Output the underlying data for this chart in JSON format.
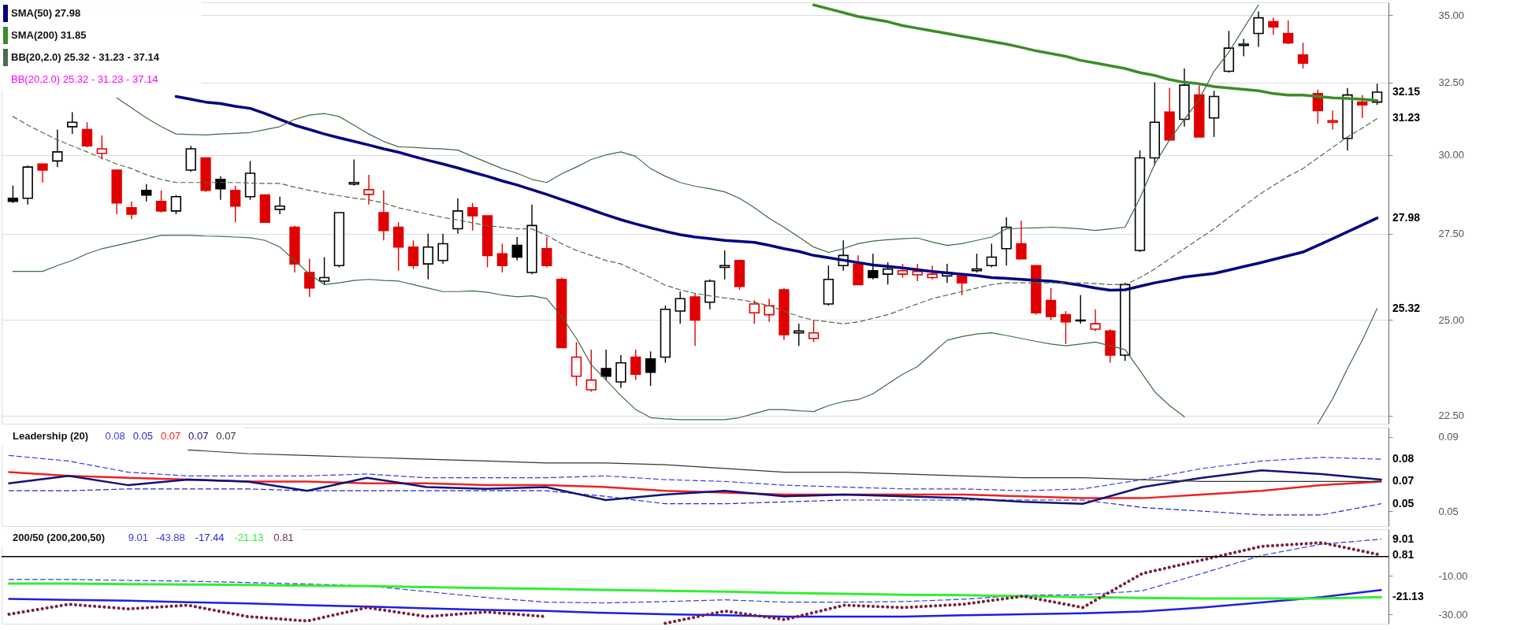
{
  "chart_data": [
    {
      "type": "candlestick",
      "legend": "top left",
      "log": true,
      "grid": "y",
      "categories": [
        null,
        null,
        null,
        null,
        null,
        null,
        null,
        null,
        null,
        null,
        null,
        null,
        null,
        null,
        null,
        null,
        null,
        null,
        null,
        null,
        null,
        null,
        null,
        null,
        null,
        null,
        null,
        null,
        null,
        null,
        null,
        null,
        null,
        null,
        null,
        null,
        null,
        null,
        null,
        null,
        null,
        null,
        null,
        null,
        null,
        null,
        null,
        null,
        null,
        null,
        null,
        null,
        null,
        null,
        null,
        null,
        null,
        null,
        null,
        null,
        null,
        null,
        null,
        null,
        null,
        null,
        null,
        null,
        null,
        null,
        null,
        null,
        null,
        null,
        null,
        null,
        null,
        null,
        null,
        null,
        null,
        null,
        null,
        null,
        null,
        null,
        null,
        null,
        null,
        null,
        null,
        null,
        null
      ],
      "ohlc": [
        [
          28.6,
          29.0,
          28.45,
          28.5
        ],
        [
          28.6,
          29.65,
          28.4,
          29.6
        ],
        [
          29.7,
          29.7,
          29.1,
          29.5
        ],
        [
          29.8,
          30.85,
          29.6,
          30.1
        ],
        [
          30.95,
          31.45,
          30.7,
          31.1
        ],
        [
          30.85,
          31.1,
          30.25,
          30.3
        ],
        [
          30.05,
          30.65,
          29.85,
          30.2
        ],
        [
          29.5,
          29.5,
          28.1,
          28.45
        ],
        [
          28.3,
          28.5,
          27.95,
          28.1
        ],
        [
          28.85,
          29.05,
          28.5,
          28.7
        ],
        [
          28.5,
          28.85,
          28.15,
          28.2
        ],
        [
          28.2,
          28.7,
          28.1,
          28.65
        ],
        [
          29.5,
          30.3,
          29.45,
          30.2
        ],
        [
          29.9,
          29.9,
          28.8,
          28.85
        ],
        [
          29.2,
          29.3,
          28.55,
          28.9
        ],
        [
          28.85,
          29.0,
          27.85,
          28.35
        ],
        [
          28.65,
          29.8,
          28.55,
          29.4
        ],
        [
          28.7,
          28.7,
          27.85,
          27.85
        ],
        [
          28.25,
          28.65,
          28.1,
          28.35
        ],
        [
          27.7,
          27.75,
          26.35,
          26.6
        ],
        [
          26.35,
          26.75,
          25.65,
          25.9
        ],
        [
          26.1,
          26.8,
          26.0,
          26.2
        ],
        [
          26.55,
          28.15,
          26.5,
          28.15
        ],
        [
          29.05,
          29.85,
          29.0,
          29.1
        ],
        [
          28.72,
          29.35,
          28.4,
          28.87
        ],
        [
          28.15,
          28.85,
          27.3,
          27.6
        ],
        [
          27.7,
          27.85,
          26.4,
          27.1
        ],
        [
          27.1,
          27.3,
          26.45,
          26.55
        ],
        [
          26.6,
          27.5,
          26.15,
          27.1
        ],
        [
          26.7,
          27.5,
          26.6,
          27.2
        ],
        [
          27.65,
          28.6,
          27.5,
          28.2
        ],
        [
          28.3,
          28.45,
          27.6,
          28.05
        ],
        [
          28.05,
          28.05,
          26.5,
          26.85
        ],
        [
          26.9,
          27.2,
          26.35,
          26.55
        ],
        [
          27.15,
          27.4,
          26.7,
          26.8
        ],
        [
          26.35,
          28.4,
          26.3,
          27.75
        ],
        [
          27.05,
          27.4,
          26.5,
          26.55
        ],
        [
          26.15,
          26.2,
          24.25,
          24.25
        ],
        [
          23.5,
          24.4,
          23.25,
          24.0
        ],
        [
          23.15,
          24.2,
          23.1,
          23.4
        ],
        [
          23.7,
          24.2,
          23.4,
          23.5
        ],
        [
          23.35,
          24.05,
          23.2,
          23.85
        ],
        [
          24.0,
          24.2,
          23.4,
          23.55
        ],
        [
          23.95,
          24.15,
          23.25,
          23.6
        ],
        [
          24.0,
          25.4,
          23.85,
          25.3
        ],
        [
          25.25,
          25.8,
          24.9,
          25.6
        ],
        [
          25.65,
          25.75,
          24.3,
          25.0
        ],
        [
          25.5,
          26.15,
          25.3,
          26.1
        ],
        [
          26.5,
          27.0,
          26.15,
          26.55
        ],
        [
          26.7,
          26.7,
          25.85,
          25.95
        ],
        [
          25.2,
          25.55,
          24.9,
          25.45
        ],
        [
          25.15,
          25.6,
          24.95,
          25.4
        ],
        [
          25.85,
          25.9,
          24.45,
          24.6
        ],
        [
          24.65,
          24.9,
          24.3,
          24.7
        ],
        [
          24.5,
          25.0,
          24.4,
          24.65
        ],
        [
          25.45,
          26.55,
          25.4,
          26.15
        ],
        [
          26.55,
          27.3,
          26.4,
          26.85
        ],
        [
          26.6,
          26.85,
          26.0,
          26.0
        ],
        [
          26.4,
          26.9,
          26.15,
          26.2
        ],
        [
          26.3,
          26.65,
          26.0,
          26.45
        ],
        [
          26.3,
          26.6,
          26.2,
          26.4
        ],
        [
          26.28,
          26.6,
          26.1,
          26.38
        ],
        [
          26.2,
          26.55,
          26.15,
          26.3
        ],
        [
          26.25,
          26.6,
          26.05,
          26.35
        ],
        [
          26.25,
          26.25,
          25.7,
          26.05
        ],
        [
          26.4,
          26.9,
          26.35,
          26.45
        ],
        [
          26.55,
          27.2,
          26.5,
          26.8
        ],
        [
          27.05,
          28.0,
          26.55,
          27.7
        ],
        [
          27.2,
          27.9,
          26.75,
          26.75
        ],
        [
          26.55,
          26.55,
          25.15,
          25.2
        ],
        [
          25.55,
          25.9,
          25.0,
          25.1
        ],
        [
          25.15,
          25.25,
          24.35,
          24.95
        ],
        [
          24.98,
          25.7,
          24.9,
          25.0
        ],
        [
          24.75,
          25.3,
          24.7,
          24.9
        ],
        [
          24.7,
          24.75,
          23.85,
          24.05
        ],
        [
          24.05,
          26.05,
          23.9,
          26.0
        ],
        [
          27.0,
          30.15,
          26.95,
          29.9
        ],
        [
          29.9,
          32.5,
          29.65,
          31.1
        ],
        [
          31.45,
          32.3,
          30.5,
          30.5
        ],
        [
          31.2,
          33.0,
          30.95,
          32.4
        ],
        [
          32.05,
          32.4,
          30.6,
          30.6
        ],
        [
          31.25,
          32.2,
          30.6,
          32.0
        ],
        [
          32.9,
          34.4,
          32.85,
          33.75
        ],
        [
          33.85,
          34.1,
          33.45,
          33.9
        ],
        [
          34.3,
          35.15,
          33.8,
          34.9
        ],
        [
          34.75,
          34.9,
          34.25,
          34.55
        ],
        [
          34.3,
          34.8,
          33.9,
          33.95
        ],
        [
          33.5,
          33.95,
          33.0,
          33.2
        ],
        [
          32.1,
          32.25,
          31.05,
          31.5
        ],
        [
          31.1,
          31.5,
          30.85,
          31.15
        ],
        [
          30.55,
          32.3,
          30.15,
          32.05
        ],
        [
          31.8,
          32.05,
          31.25,
          31.7
        ],
        [
          31.8,
          32.45,
          31.7,
          32.15
        ]
      ],
      "colors": [
        "#000000",
        "#000000",
        "#e00000",
        "#000000",
        "#000000",
        "#e00000",
        "#e00000",
        "#e00000",
        "#e00000",
        "#000000",
        "#e00000",
        "#000000",
        "#000000",
        "#e00000",
        "#000000",
        "#e00000",
        "#000000",
        "#e00000",
        "#000000",
        "#e00000",
        "#e00000",
        "#000000",
        "#000000",
        "#000000",
        "#e00000",
        "#e00000",
        "#e00000",
        "#e00000",
        "#000000",
        "#000000",
        "#000000",
        "#e00000",
        "#e00000",
        "#e00000",
        "#000000",
        "#000000",
        "#e00000",
        "#e00000",
        "#e00000",
        "#e00000",
        "#000000",
        "#000000",
        "#e00000",
        "#000000",
        "#000000",
        "#000000",
        "#e00000",
        "#000000",
        "#000000",
        "#e00000",
        "#e00000",
        "#e00000",
        "#e00000",
        "#000000",
        "#e00000",
        "#000000",
        "#000000",
        "#e00000",
        "#000000",
        "#000000",
        "#e00000",
        "#e00000",
        "#e00000",
        "#000000",
        "#e00000",
        "#000000",
        "#000000",
        "#000000",
        "#e00000",
        "#e00000",
        "#e00000",
        "#e00000",
        "#000000",
        "#e00000",
        "#e00000",
        "#000000",
        "#000000",
        "#000000",
        "#e00000",
        "#000000",
        "#e00000",
        "#000000",
        "#000000",
        "#000000",
        "#000000",
        "#e00000",
        "#e00000",
        "#e00000",
        "#e00000",
        "#e00000",
        "#000000",
        "#e00000",
        "#000000"
      ],
      "series": [
        {
          "name": "SMA(50) 27.98",
          "type": "line",
          "color": "#000080",
          "value_labels": [
            null,
            null,
            null,
            null,
            null,
            null,
            null,
            null,
            null,
            null,
            null,
            null,
            null,
            null,
            null,
            null,
            null,
            null,
            null,
            null,
            null,
            null,
            null,
            null,
            null,
            null,
            null,
            null,
            null,
            null,
            null,
            null,
            null,
            null,
            null,
            null,
            null,
            null,
            null,
            null,
            null,
            null,
            null,
            null,
            null,
            null,
            null,
            null,
            null,
            null,
            null,
            null,
            null,
            null,
            null,
            null,
            null,
            null,
            null,
            null,
            null,
            null,
            null,
            null,
            null,
            null,
            null,
            null,
            null,
            null,
            null,
            null,
            null,
            null,
            null,
            null,
            null,
            null,
            null,
            null,
            null,
            null,
            null,
            null,
            null,
            null,
            null,
            null,
            null,
            null,
            null,
            null,
            "27.98"
          ],
          "values": [
            null,
            null,
            null,
            null,
            null,
            null,
            null,
            null,
            null,
            null,
            null,
            32.0,
            31.9,
            31.8,
            31.75,
            31.65,
            31.58,
            31.4,
            31.2,
            31.0,
            30.85,
            30.7,
            30.57,
            30.45,
            30.33,
            30.2,
            30.09,
            29.95,
            29.82,
            29.7,
            29.57,
            29.43,
            29.3,
            29.15,
            29.02,
            28.87,
            28.72,
            28.56,
            28.4,
            28.24,
            28.08,
            27.93,
            27.8,
            27.68,
            27.57,
            27.47,
            27.4,
            27.35,
            27.3,
            27.27,
            27.24,
            27.15,
            27.05,
            26.97,
            26.85,
            26.78,
            26.71,
            26.64,
            26.57,
            26.53,
            26.48,
            26.43,
            26.38,
            26.34,
            26.3,
            26.26,
            26.2,
            26.18,
            26.15,
            26.12,
            26.1,
            26.05,
            25.98,
            25.9,
            25.84,
            25.85,
            25.95,
            26.05,
            26.13,
            26.22,
            26.27,
            26.32,
            26.42,
            26.52,
            26.62,
            26.73,
            26.84,
            26.95,
            27.15,
            27.35,
            27.56,
            27.77,
            27.98
          ]
        },
        {
          "name": "SMA(200) 31.85",
          "type": "line",
          "color": "#3c8c28",
          "values": [
            null,
            null,
            null,
            null,
            null,
            null,
            null,
            null,
            null,
            null,
            null,
            null,
            null,
            null,
            null,
            null,
            null,
            null,
            null,
            null,
            null,
            null,
            null,
            null,
            null,
            null,
            null,
            null,
            null,
            null,
            null,
            null,
            null,
            null,
            null,
            null,
            null,
            null,
            null,
            null,
            null,
            null,
            null,
            null,
            null,
            null,
            null,
            null,
            null,
            null,
            null,
            null,
            null,
            null,
            35.4,
            35.25,
            35.1,
            34.95,
            34.85,
            34.75,
            34.6,
            34.5,
            34.4,
            34.3,
            34.2,
            34.1,
            34.0,
            33.9,
            33.78,
            33.65,
            33.55,
            33.45,
            33.3,
            33.2,
            33.1,
            33.0,
            32.85,
            32.75,
            32.6,
            32.5,
            32.45,
            32.35,
            32.3,
            32.25,
            32.2,
            32.1,
            32.05,
            32.05,
            32.0,
            31.95,
            31.93,
            31.9,
            31.85
          ]
        },
        {
          "name": "BB(20,2.0) 25.32 - 31.23 - 37.14",
          "type": "line",
          "color": "#4d6b4d",
          "line_style": "dashed",
          "value_labels": [
            null,
            null,
            null,
            null,
            null,
            null,
            null,
            null,
            null,
            null,
            null,
            null,
            null,
            null,
            null,
            null,
            null,
            null,
            null,
            null,
            null,
            null,
            null,
            null,
            null,
            null,
            null,
            null,
            null,
            null,
            null,
            null,
            null,
            null,
            null,
            null,
            null,
            null,
            null,
            null,
            null,
            null,
            null,
            null,
            null,
            null,
            null,
            null,
            null,
            null,
            null,
            null,
            null,
            null,
            null,
            null,
            null,
            null,
            null,
            null,
            null,
            null,
            null,
            null,
            null,
            null,
            null,
            null,
            null,
            null,
            null,
            null,
            null,
            null,
            null,
            null,
            null,
            null,
            null,
            null,
            null,
            null,
            null,
            null,
            null,
            null,
            null,
            null,
            null,
            null,
            null,
            null,
            "31.23"
          ],
          "values": [
            31.3,
            31.0,
            30.75,
            30.5,
            30.3,
            30.1,
            29.9,
            29.7,
            29.55,
            29.35,
            29.2,
            29.1,
            29.1,
            29.1,
            29.1,
            29.1,
            29.08,
            29.07,
            29.07,
            28.95,
            28.85,
            28.76,
            28.68,
            28.6,
            28.55,
            28.45,
            28.3,
            28.2,
            28.1,
            28.0,
            27.92,
            27.83,
            27.75,
            27.7,
            27.65,
            27.65,
            27.45,
            27.2,
            27.0,
            26.85,
            26.7,
            26.6,
            26.4,
            26.2,
            25.98,
            25.85,
            25.75,
            25.68,
            25.62,
            25.57,
            25.5,
            25.4,
            25.25,
            25.1,
            25.0,
            24.95,
            24.9,
            24.95,
            25.05,
            25.15,
            25.3,
            25.45,
            25.6,
            25.7,
            25.8,
            25.9,
            26.0,
            26.05,
            26.05,
            26.05,
            26.05,
            26.05,
            26.05,
            26.03,
            26.0,
            26.0,
            26.2,
            26.45,
            26.75,
            27.05,
            27.35,
            27.65,
            28.0,
            28.35,
            28.7,
            29.0,
            29.3,
            29.55,
            29.9,
            30.25,
            30.6,
            30.9,
            31.23
          ]
        },
        {
          "type": "line",
          "color": "#3f6b3f",
          "values": [
            null,
            null,
            null,
            null,
            null,
            null,
            null,
            31.95,
            31.6,
            31.25,
            30.95,
            30.7,
            30.68,
            30.67,
            30.7,
            30.72,
            30.75,
            30.85,
            30.95,
            31.2,
            31.35,
            31.4,
            31.3,
            31.0,
            30.7,
            30.45,
            30.27,
            30.25,
            30.22,
            30.2,
            30.16,
            29.95,
            29.75,
            29.55,
            29.4,
            29.2,
            29.1,
            29.38,
            29.6,
            29.85,
            30.0,
            30.1,
            29.95,
            29.55,
            29.3,
            29.1,
            28.98,
            28.9,
            28.8,
            28.6,
            28.3,
            27.97,
            27.7,
            27.4,
            27.1,
            26.94,
            27.05,
            27.2,
            27.28,
            27.32,
            27.35,
            27.37,
            27.25,
            27.15,
            27.2,
            27.3,
            27.4,
            27.65,
            27.67,
            27.68,
            27.7,
            27.68,
            27.65,
            27.6,
            27.65,
            27.7,
            28.6,
            29.7,
            30.5,
            31.2,
            31.9,
            32.9,
            33.6,
            34.5,
            35.4,
            null,
            null,
            null,
            null,
            null,
            null,
            null,
            null
          ]
        },
        {
          "type": "line",
          "color": "#3f6b3f",
          "value_labels": [
            null,
            null,
            null,
            null,
            null,
            null,
            null,
            null,
            null,
            null,
            null,
            null,
            null,
            null,
            null,
            null,
            null,
            null,
            null,
            null,
            null,
            null,
            null,
            null,
            null,
            null,
            null,
            null,
            null,
            null,
            null,
            null,
            null,
            null,
            null,
            null,
            null,
            null,
            null,
            null,
            null,
            null,
            null,
            null,
            null,
            null,
            null,
            null,
            null,
            null,
            null,
            null,
            null,
            null,
            null,
            null,
            null,
            null,
            null,
            null,
            null,
            null,
            null,
            null,
            null,
            null,
            null,
            null,
            null,
            null,
            null,
            null,
            null,
            null,
            null,
            null,
            null,
            null,
            null,
            null,
            null,
            null,
            null,
            null,
            null,
            null,
            null,
            null,
            null,
            null,
            null,
            null,
            "25.32"
          ],
          "values": [
            26.38,
            26.38,
            26.38,
            26.55,
            26.7,
            26.9,
            27.05,
            27.15,
            27.25,
            27.35,
            27.45,
            27.45,
            27.45,
            27.43,
            27.42,
            27.4,
            27.38,
            27.3,
            27.1,
            26.7,
            26.3,
            26.0,
            26.05,
            26.12,
            26.15,
            26.12,
            26.1,
            26.0,
            25.9,
            25.8,
            25.8,
            25.82,
            25.78,
            25.7,
            25.65,
            25.68,
            25.6,
            25.1,
            24.5,
            23.8,
            23.4,
            23.0,
            22.65,
            22.45,
            22.42,
            22.4,
            22.4,
            22.4,
            22.4,
            22.45,
            22.55,
            22.65,
            22.65,
            22.62,
            22.6,
            22.75,
            22.85,
            22.9,
            23.05,
            23.3,
            23.55,
            23.75,
            24.1,
            24.45,
            24.55,
            24.62,
            24.65,
            24.58,
            24.5,
            24.42,
            24.35,
            24.3,
            24.35,
            24.4,
            24.3,
            24.2,
            23.65,
            23.1,
            22.75,
            22.47,
            null,
            null,
            null,
            null,
            null,
            null,
            null,
            null,
            22.3,
            22.92,
            23.7,
            24.45,
            25.32
          ]
        }
      ],
      "annotations": [
        "BB(20,2.0) 25.32 - 31.23 - 37.14"
      ],
      "value_labels": [
        null,
        null,
        null,
        null,
        null,
        null,
        null,
        null,
        null,
        null,
        null,
        null,
        null,
        null,
        null,
        null,
        null,
        null,
        null,
        null,
        null,
        null,
        null,
        null,
        null,
        null,
        null,
        null,
        null,
        null,
        null,
        null,
        null,
        null,
        null,
        null,
        null,
        null,
        null,
        null,
        null,
        null,
        null,
        null,
        null,
        null,
        null,
        null,
        null,
        null,
        null,
        null,
        null,
        null,
        null,
        null,
        null,
        null,
        null,
        null,
        null,
        null,
        null,
        null,
        null,
        null,
        null,
        null,
        null,
        null,
        null,
        null,
        null,
        null,
        null,
        null,
        null,
        null,
        null,
        null,
        null,
        null,
        null,
        null,
        null,
        null,
        null,
        null,
        null,
        null,
        null,
        null,
        "32.15"
      ],
      "ylim": [
        22.3,
        35.5
      ],
      "yticks": [
        {
          "value": 22.5,
          "label": "22.50"
        },
        {
          "value": 25,
          "label": "25.00"
        },
        {
          "value": 27.5,
          "label": "27.50"
        },
        {
          "value": 30,
          "label": "30.00"
        },
        {
          "value": 32.5,
          "label": "32.50"
        },
        {
          "value": 35,
          "label": "35.00"
        }
      ]
    },
    {
      "type": "line",
      "title": "Leadership (20)",
      "legend": "top left",
      "categories": [
        null,
        null,
        null,
        null,
        null,
        null,
        null,
        null,
        null,
        null,
        null,
        null,
        null,
        null,
        null,
        null,
        null,
        null,
        null,
        null,
        null,
        null,
        null,
        null
      ],
      "series": [
        {
          "name": "0.08",
          "color": "#3a3ae0",
          "line_style": "dashed",
          "value_labels": [
            null,
            null,
            null,
            null,
            null,
            null,
            null,
            null,
            null,
            null,
            null,
            null,
            null,
            null,
            null,
            null,
            null,
            null,
            null,
            null,
            null,
            null,
            null,
            "0.08"
          ],
          "values": [
            0.08,
            0.077,
            0.071,
            0.069,
            0.069,
            0.069,
            0.07,
            0.068,
            0.068,
            0.068,
            0.069,
            0.067,
            0.066,
            0.064,
            0.063,
            0.062,
            0.062,
            0.061,
            0.062,
            0.067,
            0.073,
            0.077,
            0.079,
            0.078
          ]
        },
        {
          "name": "0.05",
          "color": "#2424c8",
          "line_style": "dashed",
          "value_labels": [
            null,
            null,
            null,
            null,
            null,
            null,
            null,
            null,
            null,
            null,
            null,
            null,
            null,
            null,
            null,
            null,
            null,
            null,
            null,
            null,
            null,
            null,
            null,
            "0.05"
          ],
          "values": [
            0.061,
            0.061,
            0.062,
            0.062,
            0.062,
            0.061,
            0.061,
            0.061,
            0.061,
            0.061,
            0.058,
            0.054,
            0.054,
            0.055,
            0.056,
            0.056,
            0.056,
            0.056,
            0.056,
            0.052,
            0.05,
            0.048,
            0.048,
            0.054
          ]
        },
        {
          "name": "0.07",
          "color": "#ee2222",
          "values": [
            0.071,
            0.069,
            0.068,
            0.067,
            0.066,
            0.066,
            0.065,
            0.065,
            0.064,
            0.064,
            0.063,
            0.061,
            0.06,
            0.059,
            0.059,
            0.059,
            0.059,
            0.058,
            0.057,
            0.057,
            0.059,
            0.061,
            0.064,
            0.066
          ]
        },
        {
          "name": "0.07",
          "color": "#12127a",
          "values": [
            0.065,
            0.069,
            0.064,
            0.067,
            0.066,
            0.061,
            0.068,
            0.063,
            0.062,
            0.063,
            0.056,
            0.059,
            0.061,
            0.058,
            0.059,
            0.058,
            0.057,
            0.055,
            0.054,
            0.063,
            0.068,
            0.072,
            0.07,
            0.067
          ]
        },
        {
          "name": "0.07",
          "color": "#333333",
          "value_labels": [
            null,
            null,
            null,
            null,
            null,
            null,
            null,
            null,
            null,
            null,
            null,
            null,
            null,
            null,
            null,
            null,
            null,
            null,
            null,
            null,
            null,
            null,
            null,
            "0.07"
          ],
          "values": [
            null,
            null,
            null,
            0.083,
            0.081,
            0.08,
            0.079,
            0.078,
            0.077,
            0.076,
            0.076,
            0.075,
            0.073,
            0.071,
            0.071,
            0.07,
            0.069,
            0.068,
            0.068,
            0.067,
            0.066,
            0.066,
            0.066,
            0.066
          ]
        }
      ],
      "ylim": [
        0.042,
        0.095
      ],
      "yticks": [
        {
          "value": 0.09,
          "label": "0.09"
        },
        {
          "value": 0.05,
          "label": "0.05"
        }
      ]
    },
    {
      "type": "line",
      "title": "200/50 (200,200,50)",
      "legend": "top left",
      "categories": [
        null,
        null,
        null,
        null,
        null,
        null,
        null,
        null,
        null,
        null,
        null,
        null,
        null,
        null,
        null,
        null,
        null,
        null,
        null,
        null,
        null,
        null,
        null,
        null
      ],
      "series": [
        {
          "name": "9.01",
          "color": "#3a3ae0",
          "line_style": "dashed",
          "value_labels": [
            null,
            null,
            null,
            null,
            null,
            null,
            null,
            null,
            null,
            null,
            null,
            null,
            null,
            null,
            null,
            null,
            null,
            null,
            null,
            null,
            null,
            null,
            null,
            "9.01"
          ],
          "values": [
            -11.9,
            -11.9,
            -12.4,
            -12.8,
            -13.5,
            -14.3,
            -15.2,
            -18.2,
            -21.3,
            -23.7,
            -24.1,
            -23.4,
            -22.5,
            -23.7,
            -23.7,
            -23.4,
            -22.2,
            -20.1,
            -19.9,
            -17.8,
            -8.8,
            0.6,
            6.4,
            9.01
          ]
        },
        {
          "name": "-43.88",
          "color": "#3a3ae0",
          "values": [
            null,
            null,
            null,
            null,
            null,
            null,
            null,
            null,
            null,
            null,
            null,
            null,
            null,
            null,
            null,
            null,
            null,
            null,
            null,
            null,
            null,
            null,
            null,
            null
          ]
        },
        {
          "name": "-17.44",
          "color": "#1f1fe0",
          "values": [
            -22.0,
            -22.5,
            -22.9,
            -23.7,
            -24.4,
            -25.3,
            -26.0,
            -26.9,
            -27.7,
            -28.3,
            -29.3,
            -30.0,
            -30.5,
            -31.2,
            -31.2,
            -31.2,
            -30.5,
            -30.0,
            -29.5,
            -28.6,
            -26.5,
            -23.9,
            -21.1,
            -17.4
          ]
        },
        {
          "name": "-21.13",
          "color": "#33ee33",
          "value_labels": [
            null,
            null,
            null,
            null,
            null,
            null,
            null,
            null,
            null,
            null,
            null,
            null,
            null,
            null,
            null,
            null,
            null,
            null,
            null,
            null,
            null,
            null,
            null,
            "-21.13"
          ],
          "values": [
            -14.0,
            -14.0,
            -14.3,
            -14.5,
            -14.7,
            -15.2,
            -15.4,
            -15.9,
            -16.4,
            -16.8,
            -17.3,
            -17.8,
            -18.2,
            -18.9,
            -19.4,
            -19.9,
            -20.1,
            -20.6,
            -21.1,
            -21.5,
            -21.8,
            -21.8,
            -21.8,
            -21.13
          ]
        },
        {
          "name": "0.81",
          "color": "#7a1f3d",
          "line_style": "dotted",
          "value_labels": [
            null,
            null,
            null,
            null,
            null,
            null,
            null,
            null,
            null,
            null,
            null,
            null,
            null,
            null,
            null,
            null,
            null,
            null,
            null,
            null,
            null,
            null,
            null,
            "0.81"
          ],
          "values": [
            -30.0,
            -24.8,
            -27.2,
            -25.3,
            -31.2,
            -33.5,
            -26.5,
            -31.2,
            -28.8,
            -31.2,
            null,
            -34.7,
            -28.3,
            -32.8,
            -25.3,
            -26.5,
            -24.8,
            -20.6,
            -26.5,
            -8.8,
            -1.8,
            5.3,
            7.2,
            0.81
          ]
        }
      ],
      "ref_lines": [
        {
          "axis": "y",
          "value": 0,
          "color": "#000000"
        }
      ],
      "ylim": [
        -34.9,
        14.2
      ],
      "yticks": [
        {
          "value": -10,
          "label": "-10.00"
        },
        {
          "value": -30,
          "label": "-30.00"
        }
      ]
    }
  ]
}
